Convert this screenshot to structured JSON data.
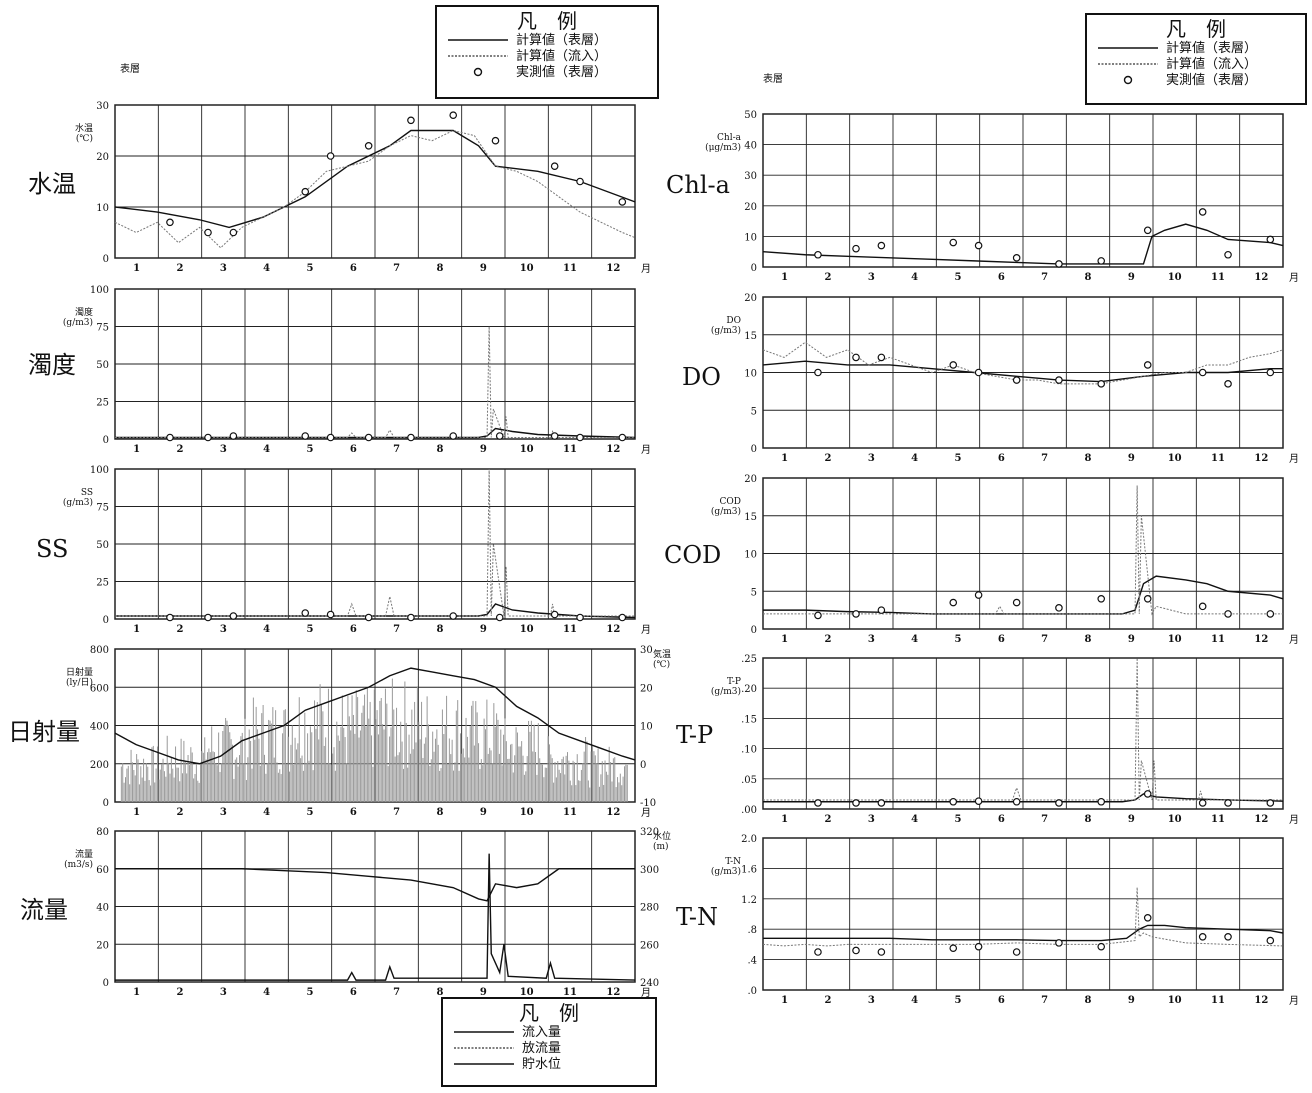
{
  "header": {
    "left_layer": "表層",
    "right_layer": "表層"
  },
  "legend_top_left": {
    "title": "凡　例",
    "entries": [
      "計算値（表層）",
      "計算値（流入）",
      "実測値（表層）"
    ]
  },
  "legend_top_right": {
    "title": "凡　例",
    "entries": [
      "計算値（表層）",
      "計算値（流入）",
      "実測値（表層）"
    ]
  },
  "legend_bottom": {
    "title": "凡　例",
    "entries": [
      "流入量",
      "放流量",
      "貯水位"
    ]
  },
  "month_unit": "月",
  "month_ticks": [
    "1",
    "2",
    "3",
    "4",
    "5",
    "6",
    "7",
    "8",
    "9",
    "10",
    "11",
    "12"
  ],
  "colors": {
    "line": "#111111",
    "grid": "#222222",
    "dotted": "#777777",
    "bars": "#999999"
  },
  "chart_data": [
    {
      "id": "wt",
      "type": "line",
      "label": "水温",
      "ylabel": "水温\n(℃)",
      "ylim": [
        0,
        30
      ],
      "yticks": [
        "0",
        "10",
        "20",
        "30"
      ],
      "series": [
        {
          "name": "計算値（表層）",
          "x": [
            0,
            1,
            2,
            2.7,
            3.5,
            4.5,
            5.5,
            6.5,
            7,
            8,
            8.6,
            9,
            10,
            11,
            12.3
          ],
          "values": [
            10,
            9,
            7.5,
            6,
            8,
            12,
            18,
            22,
            25,
            25,
            22,
            18,
            17,
            15,
            11
          ]
        },
        {
          "name": "計算値（流入）",
          "x": [
            0,
            0.5,
            1,
            1.5,
            2,
            2.5,
            3,
            3.5,
            4,
            4.5,
            5,
            5.5,
            6,
            6.5,
            7,
            7.5,
            8,
            8.5,
            9,
            9.5,
            10,
            10.5,
            11,
            11.5,
            12,
            12.3
          ],
          "values": [
            7,
            5,
            7,
            3,
            6,
            2,
            6,
            8,
            10,
            13,
            17,
            18,
            19,
            22,
            24,
            23,
            25,
            24,
            18,
            17,
            15,
            12,
            9,
            7,
            5,
            4
          ]
        }
      ],
      "points": {
        "name": "実測値（表層）",
        "x": [
          1.3,
          2.2,
          2.8,
          4.5,
          5.1,
          6,
          7,
          8,
          9,
          10.4,
          11,
          12
        ],
        "values": [
          7,
          5,
          5,
          13,
          20,
          22,
          27,
          28,
          23,
          18,
          15,
          11
        ]
      }
    },
    {
      "id": "turb",
      "type": "line",
      "label": "濁度",
      "ylabel": "濁度\n(g/m3)",
      "ylim": [
        0,
        100
      ],
      "yticks": [
        "0",
        "25",
        "50",
        "75",
        "100"
      ],
      "series": [
        {
          "name": "計算値（表層）",
          "x": [
            0,
            8.6,
            8.8,
            9,
            9.4,
            10,
            11,
            12.3
          ],
          "values": [
            1,
            1,
            2,
            7,
            5,
            3,
            2,
            1
          ]
        },
        {
          "name": "計算値（流入）",
          "x": [
            0,
            5.5,
            5.6,
            5.7,
            6.4,
            6.5,
            6.6,
            8.8,
            8.85,
            8.9,
            8.95,
            9.2,
            9.25,
            9.3,
            10.3,
            10.35,
            10.4,
            12.3
          ],
          "values": [
            1,
            1,
            4,
            1,
            1,
            6,
            1,
            1,
            75,
            1,
            20,
            1,
            15,
            1,
            1,
            5,
            1,
            1
          ]
        }
      ],
      "points": {
        "name": "実測値（表層）",
        "x": [
          1.3,
          2.2,
          2.8,
          4.5,
          5.1,
          6,
          7,
          8,
          9.1,
          10.4,
          11,
          12
        ],
        "values": [
          1,
          1,
          2,
          2,
          1,
          1,
          1,
          2,
          2,
          2,
          1,
          1
        ]
      }
    },
    {
      "id": "ss",
      "type": "line",
      "label": "SS",
      "ylabel": "SS\n(g/m3)",
      "ylim": [
        0,
        100
      ],
      "yticks": [
        "0",
        "25",
        "50",
        "75",
        "100"
      ],
      "series": [
        {
          "name": "計算値（表層）",
          "x": [
            0,
            8.6,
            8.8,
            9,
            9.4,
            10,
            11,
            12.3
          ],
          "values": [
            2,
            2,
            3,
            10,
            6,
            4,
            2,
            1
          ]
        },
        {
          "name": "計算値（流入）",
          "x": [
            0,
            5.5,
            5.6,
            5.7,
            6.4,
            6.5,
            6.6,
            8.8,
            8.85,
            8.9,
            8.95,
            9.2,
            9.25,
            9.3,
            10.3,
            10.35,
            10.4,
            12.3
          ],
          "values": [
            2,
            2,
            10,
            2,
            2,
            15,
            2,
            2,
            100,
            2,
            50,
            2,
            35,
            2,
            2,
            10,
            2,
            2
          ]
        }
      ],
      "points": {
        "name": "実測値（表層）",
        "x": [
          1.3,
          2.2,
          2.8,
          4.5,
          5.1,
          6,
          7,
          8,
          9.1,
          10.4,
          11,
          12
        ],
        "values": [
          1,
          1,
          2,
          4,
          3,
          1,
          1,
          2,
          1,
          3,
          1,
          1
        ]
      }
    },
    {
      "id": "rad",
      "type": "bar+line",
      "label": "日射量",
      "ylabel": "日射量\n(ly/日)",
      "y2label": "気温\n(℃)",
      "ylim": [
        0,
        800
      ],
      "yticks": [
        "0",
        "200",
        "400",
        "600",
        "800"
      ],
      "y2lim": [
        -10,
        30
      ],
      "y2ticks": [
        "-10",
        "0",
        "10",
        "20",
        "30"
      ],
      "bars": {
        "name": "日射量",
        "amplitude_by_month": [
          300,
          350,
          450,
          550,
          650,
          600,
          650,
          600,
          550,
          450,
          350,
          300
        ]
      },
      "series": [
        {
          "name": "気温",
          "x": [
            0,
            0.5,
            1,
            1.5,
            2,
            2.5,
            3,
            3.5,
            4,
            4.5,
            5,
            5.5,
            6,
            6.5,
            7,
            7.5,
            8,
            8.5,
            9,
            9.5,
            10,
            10.5,
            11,
            11.5,
            12,
            12.3
          ],
          "values": [
            8,
            5,
            3,
            1,
            0,
            2,
            6,
            8,
            10,
            14,
            16,
            18,
            20,
            23,
            25,
            24,
            23,
            22,
            20,
            15,
            12,
            8,
            6,
            4,
            2,
            1
          ]
        }
      ]
    },
    {
      "id": "flow",
      "type": "line",
      "label": "流量",
      "ylabel": "流量\n(m3/s)",
      "y2label": "水位\n(m)",
      "ylim": [
        0,
        80
      ],
      "yticks": [
        "0",
        "20",
        "40",
        "60",
        "80"
      ],
      "y2lim": [
        240,
        320
      ],
      "y2ticks": [
        "240",
        "260",
        "280",
        "300",
        "320"
      ],
      "series": [
        {
          "name": "流入量",
          "x": [
            0,
            5.5,
            5.6,
            5.7,
            6.4,
            6.5,
            6.6,
            8.8,
            8.85,
            8.9,
            9.1,
            9.2,
            9.3,
            10.2,
            10.3,
            10.4,
            12.3
          ],
          "values": [
            1,
            1,
            5,
            1,
            1,
            8,
            2,
            2,
            68,
            15,
            5,
            20,
            3,
            2,
            10,
            2,
            1
          ]
        },
        {
          "name": "貯水位",
          "x": [
            0,
            3,
            5,
            6,
            7,
            8,
            8.6,
            8.8,
            9,
            9.5,
            10,
            10.5,
            12.3
          ],
          "values": [
            300,
            300,
            298,
            296,
            294,
            290,
            284,
            283,
            292,
            290,
            292,
            300,
            300
          ]
        }
      ]
    },
    {
      "id": "chla",
      "type": "line",
      "label": "Chl-a",
      "ylabel": "Chl-a\n(μg/m3)",
      "ylim": [
        0,
        50
      ],
      "yticks": [
        "0",
        "10",
        "20",
        "30",
        "40",
        "50"
      ],
      "series": [
        {
          "name": "計算値（表層）",
          "x": [
            0,
            1,
            2,
            3,
            4,
            5,
            6,
            7,
            8,
            8.5,
            9,
            9.2,
            9.5,
            10,
            10.5,
            11,
            12,
            12.3
          ],
          "values": [
            5,
            4,
            3.5,
            3,
            2.5,
            2,
            1.5,
            1,
            1,
            1,
            1,
            10,
            12,
            14,
            12,
            9,
            8,
            7
          ]
        }
      ],
      "points": {
        "name": "実測値（表層）",
        "x": [
          1.3,
          2.2,
          2.8,
          4.5,
          5.1,
          6,
          7,
          8,
          9.1,
          10.4,
          11,
          12
        ],
        "values": [
          4,
          6,
          7,
          8,
          7,
          3,
          1,
          2,
          12,
          18,
          4,
          9
        ]
      }
    },
    {
      "id": "do",
      "type": "line",
      "label": "DO",
      "ylabel": "DO\n(g/m3)",
      "ylim": [
        0,
        20
      ],
      "yticks": [
        "0",
        "5",
        "10",
        "15",
        "20"
      ],
      "series": [
        {
          "name": "計算値（表層）",
          "x": [
            0,
            1,
            2,
            3,
            4,
            5,
            6,
            7,
            8,
            9,
            10,
            11,
            12,
            12.3
          ],
          "values": [
            11,
            11.5,
            11,
            11,
            10.5,
            10,
            9.5,
            9,
            8.8,
            9.5,
            10,
            10,
            10.5,
            10.5
          ]
        },
        {
          "name": "計算値（流入）",
          "x": [
            0,
            0.5,
            1,
            1.5,
            2,
            2.5,
            3,
            3.5,
            4,
            4.5,
            5,
            5.5,
            6,
            6.5,
            7,
            7.5,
            8,
            8.5,
            9,
            9.5,
            10,
            10.5,
            11,
            11.5,
            12,
            12.3
          ],
          "values": [
            13,
            12,
            14,
            12,
            13,
            11,
            12,
            11,
            10,
            11,
            10,
            9.5,
            9,
            9,
            8.5,
            8.5,
            8.5,
            9,
            9.5,
            10,
            10,
            11,
            11,
            12,
            12.5,
            13
          ]
        }
      ],
      "points": {
        "name": "実測値（表層）",
        "x": [
          1.3,
          2.2,
          2.8,
          4.5,
          5.1,
          6,
          7,
          8,
          9.1,
          10.4,
          11,
          12
        ],
        "values": [
          10,
          12,
          12,
          11,
          10,
          9,
          9,
          8.5,
          11,
          10,
          8.5,
          10
        ]
      }
    },
    {
      "id": "cod",
      "type": "line",
      "label": "COD",
      "ylabel": "COD\n(g/m3)",
      "ylim": [
        0,
        20
      ],
      "yticks": [
        "0",
        "5",
        "10",
        "15",
        "20"
      ],
      "series": [
        {
          "name": "計算値（表層）",
          "x": [
            0,
            1,
            2,
            3,
            4,
            5,
            6,
            7,
            8,
            8.5,
            8.8,
            9,
            9.3,
            10,
            10.5,
            11,
            12,
            12.3
          ],
          "values": [
            2.5,
            2.5,
            2.3,
            2.2,
            2,
            2,
            2,
            2,
            2,
            2,
            2.5,
            6,
            7,
            6.5,
            6,
            5,
            4.5,
            4
          ]
        },
        {
          "name": "計算値（流入）",
          "x": [
            0,
            5.5,
            5.6,
            5.7,
            8.8,
            8.85,
            8.9,
            8.95,
            9.2,
            9.3,
            10,
            11,
            12.3
          ],
          "values": [
            2,
            2,
            3,
            2,
            2,
            19,
            2,
            15,
            2,
            3,
            2,
            2,
            2
          ]
        }
      ],
      "points": {
        "name": "実測値（表層）",
        "x": [
          1.3,
          2.2,
          2.8,
          4.5,
          5.1,
          6,
          7,
          8,
          9.1,
          10.4,
          11,
          12
        ],
        "values": [
          1.8,
          2,
          2.5,
          3.5,
          4.5,
          3.5,
          2.8,
          4,
          4,
          3,
          2,
          2
        ]
      }
    },
    {
      "id": "tp",
      "type": "line",
      "label": "T-P",
      "ylabel": "T-P\n(g/m3)",
      "ylim": [
        0,
        0.25
      ],
      "yticks": [
        ".00",
        ".05",
        ".10",
        ".15",
        ".20",
        ".25"
      ],
      "series": [
        {
          "name": "計算値（表層）",
          "x": [
            0,
            8.5,
            8.8,
            9,
            9.3,
            10,
            11,
            12.3
          ],
          "values": [
            0.012,
            0.012,
            0.015,
            0.025,
            0.02,
            0.017,
            0.015,
            0.013
          ]
        },
        {
          "name": "計算値（流入）",
          "x": [
            0,
            5.9,
            6,
            6.1,
            8.8,
            8.85,
            8.9,
            8.95,
            9.2,
            9.25,
            9.3,
            10.3,
            10.35,
            10.4,
            12.3
          ],
          "values": [
            0.015,
            0.015,
            0.035,
            0.015,
            0.015,
            0.25,
            0.015,
            0.08,
            0.015,
            0.08,
            0.015,
            0.015,
            0.03,
            0.015,
            0.015
          ]
        }
      ],
      "points": {
        "name": "実測値（表層）",
        "x": [
          1.3,
          2.2,
          2.8,
          4.5,
          5.1,
          6,
          7,
          8,
          9.1,
          10.4,
          11,
          12
        ],
        "values": [
          0.01,
          0.01,
          0.01,
          0.012,
          0.013,
          0.012,
          0.01,
          0.012,
          0.025,
          0.01,
          0.01,
          0.01
        ]
      }
    },
    {
      "id": "tn",
      "type": "line",
      "label": "T-N",
      "ylabel": "T-N\n(g/m3)",
      "ylim": [
        0,
        2.0
      ],
      "yticks": [
        ".0",
        ".4",
        ".8",
        "1.2",
        "1.6",
        "2.0"
      ],
      "series": [
        {
          "name": "計算値（表層）",
          "x": [
            0,
            1,
            2,
            3,
            4,
            5,
            6,
            7,
            8,
            8.6,
            8.9,
            9.1,
            9.5,
            10,
            11,
            12,
            12.3
          ],
          "values": [
            0.68,
            0.68,
            0.68,
            0.68,
            0.66,
            0.66,
            0.66,
            0.65,
            0.65,
            0.68,
            0.8,
            0.85,
            0.85,
            0.82,
            0.8,
            0.78,
            0.75
          ]
        },
        {
          "name": "計算値（流入）",
          "x": [
            0,
            0.5,
            1,
            1.5,
            2,
            3,
            4,
            5,
            6,
            7,
            8,
            8.8,
            8.85,
            8.9,
            9,
            9.2,
            10,
            11,
            12.3
          ],
          "values": [
            0.6,
            0.58,
            0.6,
            0.58,
            0.6,
            0.6,
            0.6,
            0.6,
            0.62,
            0.6,
            0.6,
            0.65,
            1.35,
            0.7,
            0.75,
            0.7,
            0.62,
            0.6,
            0.58
          ]
        }
      ],
      "points": {
        "name": "実測値（表層）",
        "x": [
          1.3,
          2.2,
          2.8,
          4.5,
          5.1,
          6,
          7,
          8,
          9.1,
          10.4,
          11,
          12
        ],
        "values": [
          0.5,
          0.52,
          0.5,
          0.55,
          0.57,
          0.5,
          0.62,
          0.57,
          0.95,
          0.7,
          0.7,
          0.65
        ]
      }
    }
  ]
}
